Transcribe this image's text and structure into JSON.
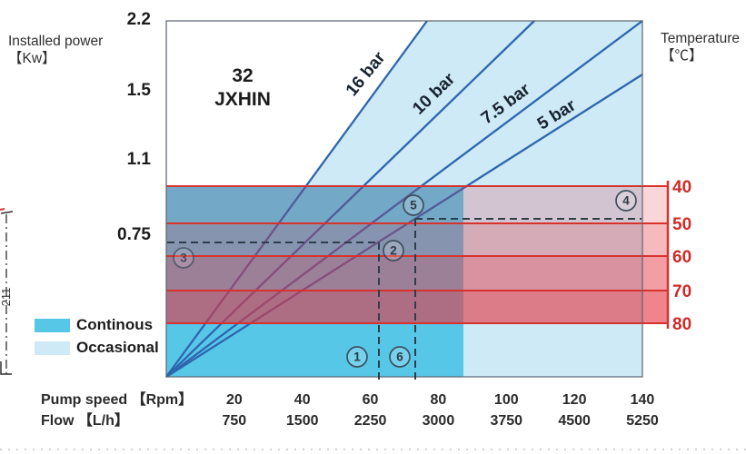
{
  "chart_data": {
    "type": "line",
    "title_lines": [
      "32",
      "JXHIN"
    ],
    "y_axis": {
      "label_lines": [
        "Installed power",
        "【Kw】"
      ],
      "ticks": [
        "2.2",
        "1.5",
        "1.1",
        "0.75"
      ]
    },
    "x_axis": {
      "label": "Pump speed 【Rpm】",
      "ticks": [
        "20",
        "40",
        "60",
        "80",
        "100",
        "120",
        "140"
      ]
    },
    "x_axis2": {
      "label": "Flow 【L/h】",
      "ticks": [
        "750",
        "1500",
        "2250",
        "3000",
        "3750",
        "4500",
        "5250"
      ]
    },
    "temp_axis": {
      "label_lines": [
        "Temperature",
        "【℃】"
      ],
      "ticks": [
        "40",
        "50",
        "60",
        "70",
        "80"
      ]
    },
    "pressure_lines": [
      {
        "label": "16 bar"
      },
      {
        "label": "10 bar"
      },
      {
        "label": "7.5 bar"
      },
      {
        "label": "5 bar"
      }
    ],
    "legend": [
      {
        "label": "Continous",
        "color": "#57c7e8"
      },
      {
        "label": "Occasional",
        "color": "#cdeaf6"
      }
    ],
    "markers": [
      "1",
      "2",
      "3",
      "4",
      "5",
      "6"
    ],
    "side_annotation": "211",
    "colors": {
      "continuous": "#57c7e8",
      "occasional": "#cdeaf6",
      "band_red": "#e63240",
      "red_line": "#d8322d",
      "temp_label": "#ce2a26",
      "blue_line": "#2e66ae",
      "dash": "#2e3d4c",
      "border": "#5a6470",
      "marker_ring": "#3f4e5c"
    },
    "layout_hints": {
      "x_range_rpm": [
        0,
        140
      ],
      "temp_band_order_top_to_bottom": [
        40,
        50,
        60,
        70,
        80
      ],
      "legend_position": "bottom-left"
    }
  }
}
